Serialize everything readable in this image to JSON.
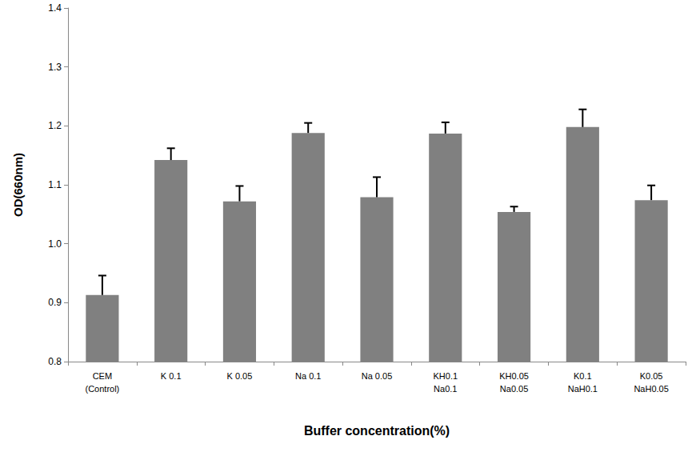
{
  "chart_data": {
    "type": "bar",
    "x_label": "Buffer concentration(%)",
    "y_label": "OD(660nm)",
    "categories": [
      "CEM\n(Control)",
      "K 0.1",
      "K 0.05",
      "Na 0.1",
      "Na 0.05",
      "KH0.1\nNa0.1",
      "KH0.05\nNa0.05",
      "K0.1\nNaH0.1",
      "K0.05\nNaH0.05"
    ],
    "values": [
      0.913,
      1.142,
      1.072,
      1.188,
      1.079,
      1.187,
      1.054,
      1.198,
      1.074
    ],
    "errors": [
      0.033,
      0.02,
      0.026,
      0.017,
      0.034,
      0.019,
      0.009,
      0.03,
      0.025
    ],
    "color": "#808080",
    "ylim": [
      0.8,
      1.4
    ],
    "yticks": [
      {
        "value": 0.8,
        "label": "0.8"
      },
      {
        "value": 0.9,
        "label": "0.9"
      },
      {
        "value": 1.0,
        "label": "1.0"
      },
      {
        "value": 1.1,
        "label": "1.1"
      },
      {
        "value": 1.2,
        "label": "1.2"
      },
      {
        "value": 1.3,
        "label": "1.3"
      },
      {
        "value": 1.4,
        "label": "1.4"
      }
    ],
    "grid": false
  }
}
